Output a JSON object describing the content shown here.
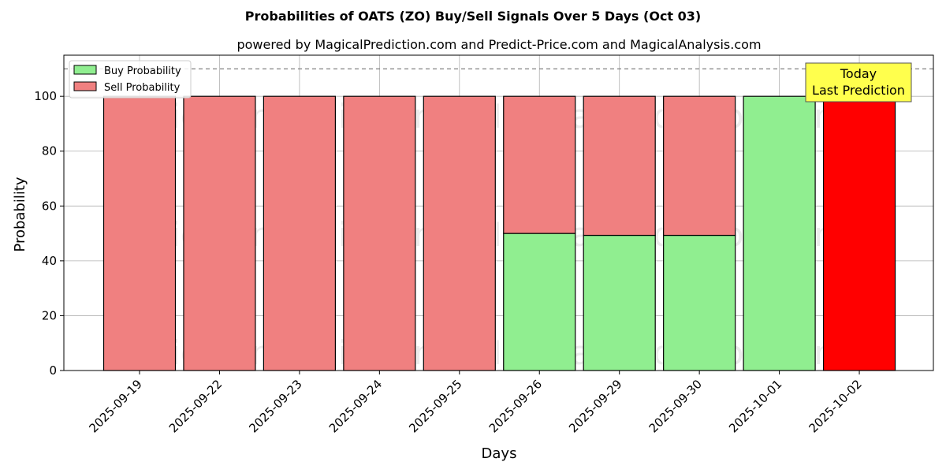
{
  "chart_data": {
    "type": "bar",
    "title": "Probabilities of OATS (ZO) Buy/Sell Signals Over 5 Days (Oct 03)",
    "subtitle": "powered by MagicalPrediction.com and Predict-Price.com and MagicalAnalysis.com",
    "xlabel": "Days",
    "ylabel": "Probability",
    "ylim": [
      0,
      115
    ],
    "yticks": [
      0,
      20,
      40,
      60,
      80,
      100
    ],
    "grid": true,
    "stacked": true,
    "legend_position": "top-left",
    "categories": [
      "2025-09-19",
      "2025-09-22",
      "2025-09-23",
      "2025-09-24",
      "2025-09-25",
      "2025-09-26",
      "2025-09-29",
      "2025-09-30",
      "2025-10-01",
      "2025-10-02"
    ],
    "series": [
      {
        "name": "Buy Probability",
        "color": "#90ee90",
        "values": [
          0,
          0,
          0,
          0,
          0,
          50,
          49.3,
          49.3,
          100,
          0
        ]
      },
      {
        "name": "Sell Probability",
        "color": "#f08080",
        "values": [
          100,
          100,
          100,
          100,
          100,
          50,
          50.7,
          50.7,
          0,
          100
        ]
      }
    ],
    "highlight": {
      "category": "2025-10-02",
      "color": "#ff0000"
    },
    "reference_line": {
      "y": 110,
      "style": "dashed",
      "color": "#808080"
    },
    "annotation": {
      "lines": [
        "Today",
        "Last Prediction"
      ],
      "background": "#ffff4d",
      "category": "2025-10-02"
    },
    "watermarks": [
      "MagicalAnalysis.com",
      "MagicalPrediction.com"
    ]
  }
}
